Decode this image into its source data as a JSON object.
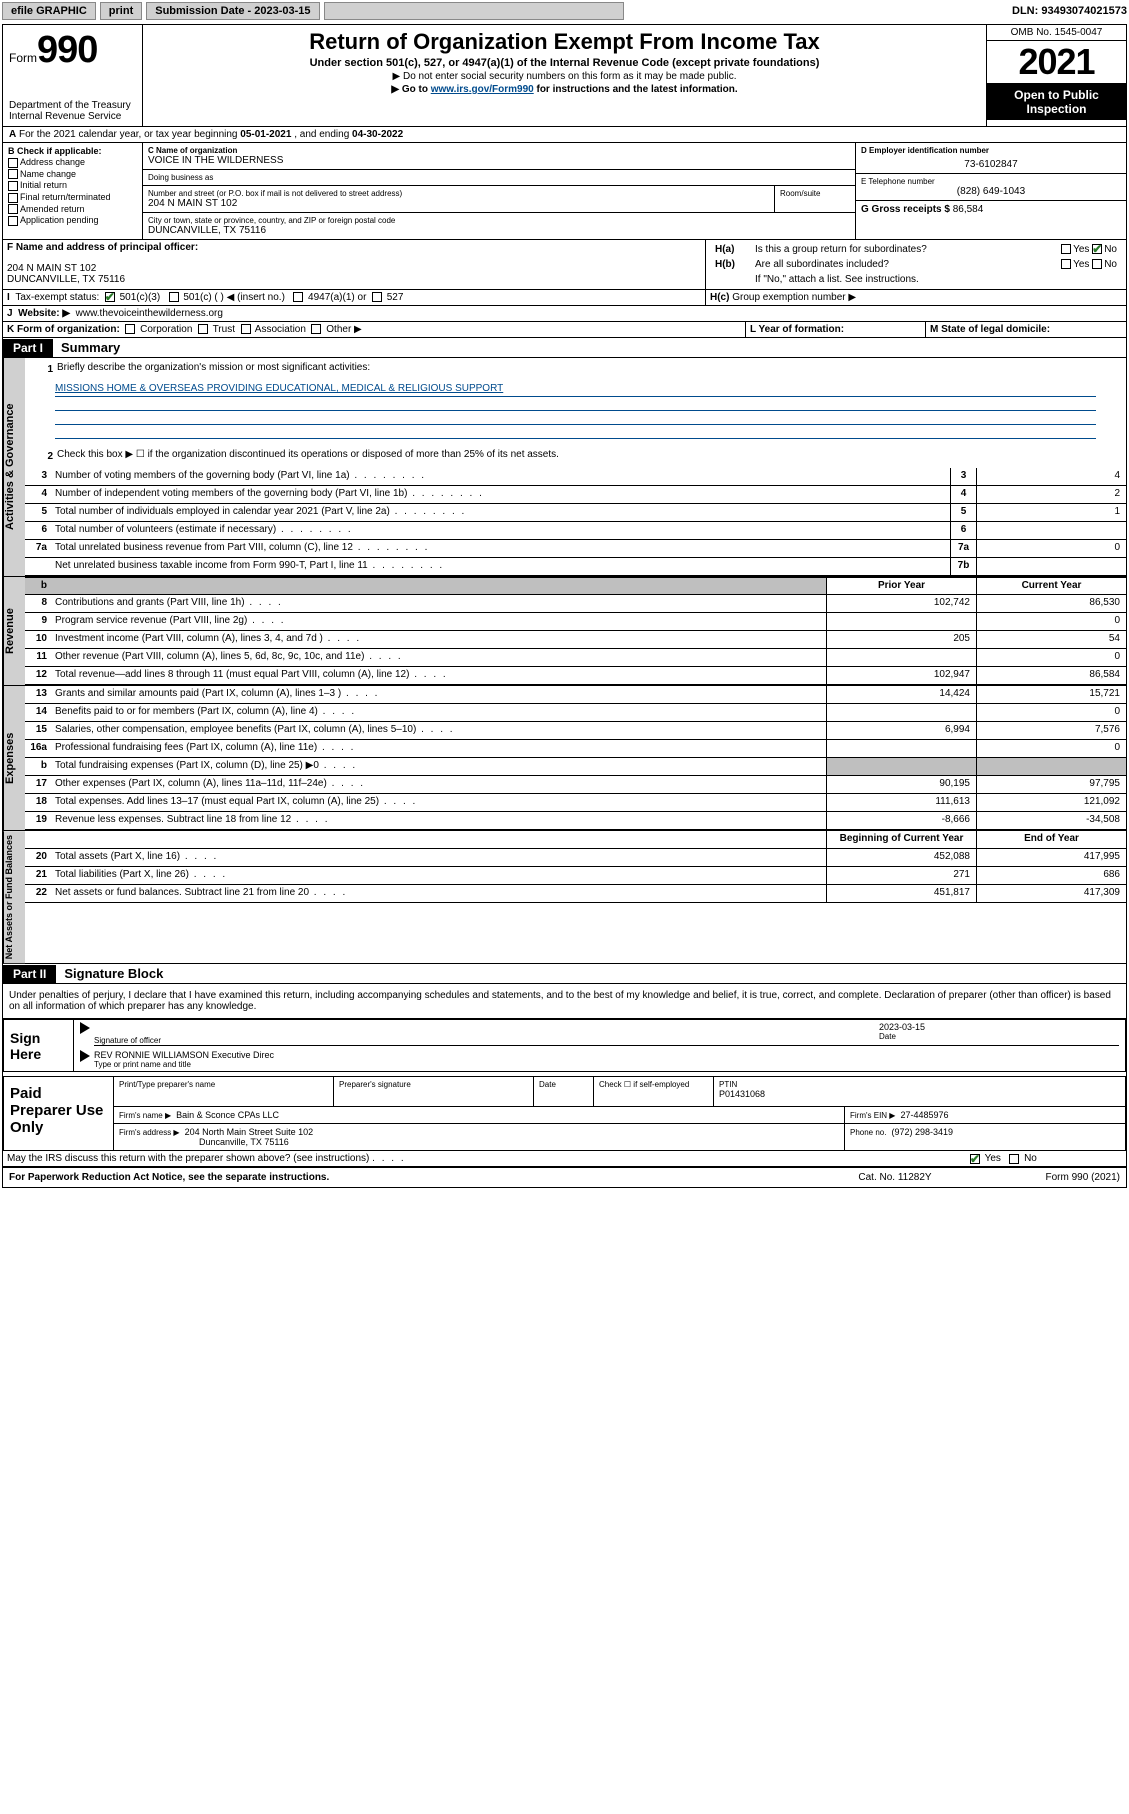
{
  "topbar": {
    "efile": "efile GRAPHIC",
    "print": "print",
    "sub_label": "Submission Date - 2023-03-15",
    "dln": "DLN: 93493074021573"
  },
  "header": {
    "form_label": "Form",
    "form_num": "990",
    "dept": "Department of the Treasury",
    "irs": "Internal Revenue Service",
    "title": "Return of Organization Exempt From Income Tax",
    "sub": "Under section 501(c), 527, or 4947(a)(1) of the Internal Revenue Code (except private foundations)",
    "note1": "▶ Do not enter social security numbers on this form as it may be made public.",
    "note2_pre": "▶ Go to ",
    "note2_link": "www.irs.gov/Form990",
    "note2_post": " for instructions and the latest information.",
    "omb": "OMB No. 1545-0047",
    "year": "2021",
    "open_pub": "Open to Public Inspection"
  },
  "secA": {
    "text_pre": "For the 2021 calendar year, or tax year beginning ",
    "begin": "05-01-2021",
    "text_mid": " , and ending ",
    "end": "04-30-2022"
  },
  "secB": {
    "label": "B Check if applicable:",
    "items": [
      "Address change",
      "Name change",
      "Initial return",
      "Final return/terminated",
      "Amended return",
      "Application pending"
    ]
  },
  "secC": {
    "name_label": "C Name of organization",
    "name": "VOICE IN THE WILDERNESS",
    "dba_label": "Doing business as",
    "dba": "",
    "street_label": "Number and street (or P.O. box if mail is not delivered to street address)",
    "street": "204 N MAIN ST 102",
    "suite_label": "Room/suite",
    "suite": "",
    "city_label": "City or town, state or province, country, and ZIP or foreign postal code",
    "city": "DUNCANVILLE, TX  75116"
  },
  "secD": {
    "label": "D Employer identification number",
    "value": "73-6102847"
  },
  "secE": {
    "label": "E Telephone number",
    "value": "(828) 649-1043"
  },
  "secG": {
    "label": "G Gross receipts $",
    "value": "86,584"
  },
  "secF": {
    "label": "F Name and address of principal officer:",
    "line1": "204 N MAIN ST 102",
    "line2": "DUNCANVILLE, TX  75116"
  },
  "secH": {
    "ha": "Is this a group return for subordinates?",
    "hb": "Are all subordinates included?",
    "hb_note": "If \"No,\" attach a list. See instructions.",
    "hc": "Group exemption number ▶",
    "yes": "Yes",
    "no": "No"
  },
  "secI": {
    "label": "Tax-exempt status:",
    "opts": [
      "501(c)(3)",
      "501(c) (   ) ◀ (insert no.)",
      "4947(a)(1) or",
      "527"
    ]
  },
  "secJ": {
    "label": "Website: ▶",
    "value": "www.thevoiceinthewilderness.org"
  },
  "secK": {
    "label": "K Form of organization:",
    "opts": [
      "Corporation",
      "Trust",
      "Association",
      "Other ▶"
    ]
  },
  "secL": {
    "label": "L Year of formation:",
    "value": ""
  },
  "secM": {
    "label": "M State of legal domicile:",
    "value": ""
  },
  "part1": {
    "hdr": "Part I",
    "title": "Summary",
    "tab_gov": "Activities & Governance",
    "tab_rev": "Revenue",
    "tab_exp": "Expenses",
    "tab_net": "Net Assets or Fund Balances",
    "l1_label": "Briefly describe the organization's mission or most significant activities:",
    "l1_text": "MISSIONS HOME & OVERSEAS PROVIDING EDUCATIONAL, MEDICAL & RELIGIOUS SUPPORT",
    "l2": "Check this box ▶ ☐  if the organization discontinued its operations or disposed of more than 25% of its net assets.",
    "prior_hdr": "Prior Year",
    "current_hdr": "Current Year",
    "begin_hdr": "Beginning of Current Year",
    "end_hdr": "End of Year",
    "lines_gov": [
      {
        "n": "3",
        "t": "Number of voting members of the governing body (Part VI, line 1a)",
        "box": "3",
        "v": "4"
      },
      {
        "n": "4",
        "t": "Number of independent voting members of the governing body (Part VI, line 1b)",
        "box": "4",
        "v": "2"
      },
      {
        "n": "5",
        "t": "Total number of individuals employed in calendar year 2021 (Part V, line 2a)",
        "box": "5",
        "v": "1"
      },
      {
        "n": "6",
        "t": "Total number of volunteers (estimate if necessary)",
        "box": "6",
        "v": ""
      },
      {
        "n": "7a",
        "t": "Total unrelated business revenue from Part VIII, column (C), line 12",
        "box": "7a",
        "v": "0"
      },
      {
        "n": "",
        "t": "Net unrelated business taxable income from Form 990-T, Part I, line 11",
        "box": "7b",
        "v": ""
      }
    ],
    "lines_rev": [
      {
        "n": "8",
        "t": "Contributions and grants (Part VIII, line 1h)",
        "p": "102,742",
        "c": "86,530"
      },
      {
        "n": "9",
        "t": "Program service revenue (Part VIII, line 2g)",
        "p": "",
        "c": "0"
      },
      {
        "n": "10",
        "t": "Investment income (Part VIII, column (A), lines 3, 4, and 7d )",
        "p": "205",
        "c": "54"
      },
      {
        "n": "11",
        "t": "Other revenue (Part VIII, column (A), lines 5, 6d, 8c, 9c, 10c, and 11e)",
        "p": "",
        "c": "0"
      },
      {
        "n": "12",
        "t": "Total revenue—add lines 8 through 11 (must equal Part VIII, column (A), line 12)",
        "p": "102,947",
        "c": "86,584"
      }
    ],
    "lines_exp": [
      {
        "n": "13",
        "t": "Grants and similar amounts paid (Part IX, column (A), lines 1–3 )",
        "p": "14,424",
        "c": "15,721"
      },
      {
        "n": "14",
        "t": "Benefits paid to or for members (Part IX, column (A), line 4)",
        "p": "",
        "c": "0"
      },
      {
        "n": "15",
        "t": "Salaries, other compensation, employee benefits (Part IX, column (A), lines 5–10)",
        "p": "6,994",
        "c": "7,576"
      },
      {
        "n": "16a",
        "t": "Professional fundraising fees (Part IX, column (A), line 11e)",
        "p": "",
        "c": "0"
      },
      {
        "n": "b",
        "t": "Total fundraising expenses (Part IX, column (D), line 25) ▶0",
        "p": "__shade__",
        "c": "__shade__"
      },
      {
        "n": "17",
        "t": "Other expenses (Part IX, column (A), lines 11a–11d, 11f–24e)",
        "p": "90,195",
        "c": "97,795"
      },
      {
        "n": "18",
        "t": "Total expenses. Add lines 13–17 (must equal Part IX, column (A), line 25)",
        "p": "111,613",
        "c": "121,092"
      },
      {
        "n": "19",
        "t": "Revenue less expenses. Subtract line 18 from line 12",
        "p": "-8,666",
        "c": "-34,508"
      }
    ],
    "lines_net": [
      {
        "n": "20",
        "t": "Total assets (Part X, line 16)",
        "p": "452,088",
        "c": "417,995"
      },
      {
        "n": "21",
        "t": "Total liabilities (Part X, line 26)",
        "p": "271",
        "c": "686"
      },
      {
        "n": "22",
        "t": "Net assets or fund balances. Subtract line 21 from line 20",
        "p": "451,817",
        "c": "417,309"
      }
    ]
  },
  "part2": {
    "hdr": "Part II",
    "title": "Signature Block",
    "decl": "Under penalties of perjury, I declare that I have examined this return, including accompanying schedules and statements, and to the best of my knowledge and belief, it is true, correct, and complete. Declaration of preparer (other than officer) is based on all information of which preparer has any knowledge.",
    "sign_here": "Sign Here",
    "sig_officer": "Signature of officer",
    "date_label": "Date",
    "date_val": "2023-03-15",
    "name_title": "REV RONNIE WILLIAMSON  Executive Direc",
    "name_title_label": "Type or print name and title",
    "paid": "Paid Preparer Use Only",
    "prep_name_label": "Print/Type preparer's name",
    "prep_sig_label": "Preparer's signature",
    "prep_date_label": "Date",
    "check_if": "Check ☐ if self-employed",
    "ptin_label": "PTIN",
    "ptin": "P01431068",
    "firm_name_label": "Firm's name   ▶",
    "firm_name": "Bain & Sconce CPAs LLC",
    "firm_ein_label": "Firm's EIN ▶",
    "firm_ein": "27-4485976",
    "firm_addr_label": "Firm's address ▶",
    "firm_addr1": "204 North Main Street Suite 102",
    "firm_addr2": "Duncanville, TX  75116",
    "phone_label": "Phone no.",
    "phone": "(972) 298-3419",
    "may_irs": "May the IRS discuss this return with the preparer shown above? (see instructions)",
    "yes": "Yes",
    "no": "No"
  },
  "footer": {
    "left": "For Paperwork Reduction Act Notice, see the separate instructions.",
    "mid": "Cat. No. 11282Y",
    "right": "Form 990 (2021)"
  }
}
